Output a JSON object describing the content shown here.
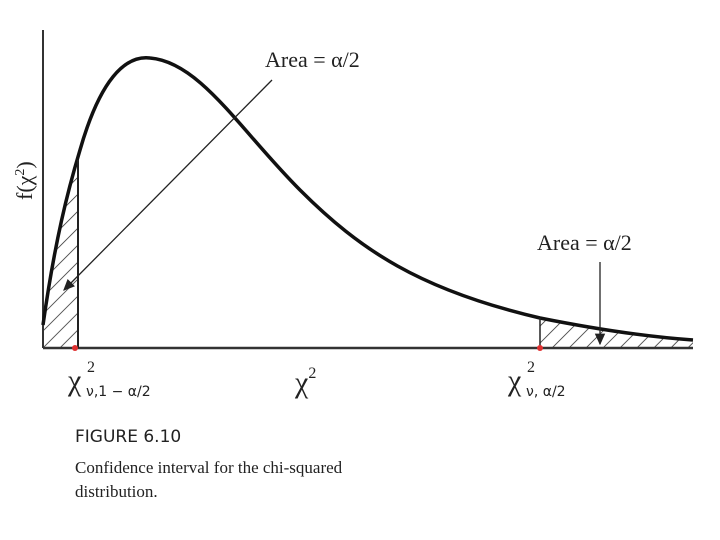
{
  "annotations": [
    {
      "text": "Area = α/2"
    },
    {
      "text": "Area = α/2"
    }
  ],
  "y_axis_label": {
    "base": "f(χ",
    "sup": "2",
    "tail": ")"
  },
  "x_axis_label": {
    "base": "χ",
    "sup": "2"
  },
  "lower_critical": {
    "base": "χ",
    "sup": "2",
    "sub": "ν,1 − α/2"
  },
  "upper_critical": {
    "base": "χ",
    "sup": "2",
    "sub": "ν, α/2"
  },
  "figure": {
    "label": "FIGURE 6.10",
    "caption": [
      "Confidence interval for the chi-squared",
      "distribution."
    ]
  }
}
